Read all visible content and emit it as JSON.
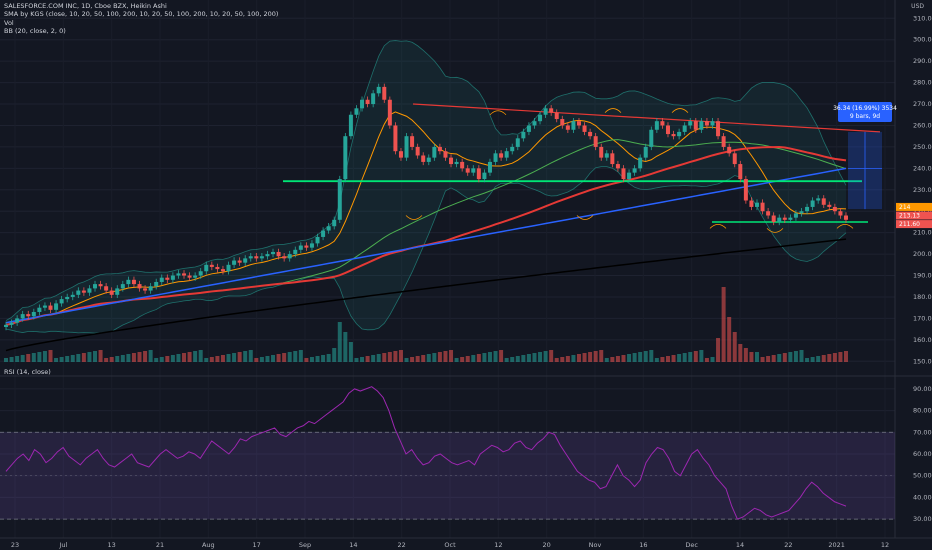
{
  "header": {
    "symbol_line": "SALESFORCE.COM INC, 1D, Cboe BZX, Heikin Ashi",
    "sma_line": "SMA by KGS (close, 10, 20, 50, 100, 200, 10, 20, 50, 100, 200, 10, 20, 50, 100, 200)",
    "vol_line": "Vol",
    "bb_line": "BB (20, close, 2, 0)",
    "rsi_line": "RSI (14, close)",
    "currency": "USD"
  },
  "measure_box": {
    "line1": "36.34 (16.99%) 3534",
    "line2": "9 bars, 9d"
  },
  "price_tags": [
    "214",
    "213.13",
    "211.60"
  ],
  "chart_data": [
    {
      "type": "candlestick",
      "title": "SALESFORCE.COM INC, 1D, Cboe BZX, Heikin Ashi",
      "y_ticks": [
        310,
        300,
        290,
        280,
        270,
        260,
        250,
        240,
        230,
        220,
        210,
        200,
        190,
        180,
        170,
        160,
        150
      ],
      "y_tick_labels": [
        "310.00",
        "300.00",
        "290.00",
        "280.00",
        "270.00",
        "260.00",
        "250.00",
        "240.00",
        "230.00",
        "220.00",
        "210.00",
        "200.00",
        "190.00",
        "180.00",
        "170.00",
        "160.00",
        "150.00"
      ],
      "ylim": [
        145,
        312
      ],
      "x_tick_labels": [
        "23",
        "Jul",
        "13",
        "21",
        "Aug",
        "17",
        "Sep",
        "14",
        "22",
        "Oct",
        "12",
        "20",
        "Nov",
        "16",
        "Dec",
        "14",
        "22",
        "2021",
        "12"
      ],
      "series_close": [
        167,
        168,
        170,
        172,
        171,
        173,
        175,
        176,
        174,
        177,
        179,
        180,
        181,
        183,
        182,
        184,
        186,
        185,
        183,
        181,
        184,
        186,
        188,
        186,
        184,
        183,
        185,
        187,
        189,
        188,
        190,
        191,
        190,
        189,
        190,
        192,
        195,
        194,
        193,
        192,
        195,
        197,
        196,
        198,
        199,
        198,
        199,
        200,
        201,
        199,
        198,
        200,
        202,
        204,
        203,
        205,
        208,
        211,
        213,
        216,
        235,
        255,
        265,
        268,
        272,
        270,
        275,
        278,
        272,
        260,
        248,
        245,
        255,
        250,
        246,
        243,
        245,
        250,
        248,
        245,
        242,
        243,
        240,
        238,
        240,
        235,
        238,
        243,
        247,
        245,
        248,
        250,
        254,
        257,
        260,
        262,
        265,
        268,
        266,
        263,
        260,
        258,
        262,
        260,
        257,
        255,
        250,
        245,
        247,
        242,
        240,
        235,
        238,
        240,
        245,
        250,
        258,
        262,
        260,
        256,
        255,
        257,
        260,
        262,
        258,
        262,
        260,
        262,
        255,
        250,
        247,
        242,
        235,
        225,
        222,
        224,
        220,
        218,
        215,
        217,
        216,
        217,
        219,
        220,
        222,
        225,
        226,
        223,
        222,
        220,
        218,
        216
      ],
      "rsi_values": [
        52,
        55,
        58,
        60,
        57,
        62,
        60,
        56,
        58,
        61,
        63,
        59,
        57,
        55,
        58,
        60,
        62,
        58,
        55,
        54,
        56,
        58,
        60,
        56,
        55,
        54,
        57,
        60,
        62,
        60,
        58,
        59,
        61,
        60,
        58,
        62,
        66,
        64,
        62,
        60,
        63,
        67,
        66,
        68,
        69,
        70,
        71,
        72,
        69,
        68,
        70,
        72,
        73,
        75,
        74,
        76,
        78,
        80,
        82,
        84,
        88,
        90,
        89,
        90,
        91,
        89,
        86,
        80,
        72,
        66,
        60,
        62,
        58,
        55,
        56,
        59,
        60,
        58,
        56,
        55,
        56,
        57,
        55,
        60,
        62,
        64,
        63,
        61,
        62,
        65,
        66,
        63,
        62,
        65,
        67,
        70,
        69,
        64,
        60,
        56,
        52,
        50,
        48,
        47,
        44,
        45,
        50,
        55,
        50,
        48,
        45,
        48,
        56,
        60,
        63,
        62,
        58,
        52,
        50,
        55,
        60,
        62,
        58,
        55,
        50,
        47,
        44,
        36,
        30,
        31,
        33,
        35,
        34,
        32,
        31,
        32,
        33,
        34,
        37,
        40,
        44,
        47,
        45,
        42,
        40,
        38,
        37,
        36
      ]
    },
    {
      "type": "line",
      "title": "RSI (14, close)",
      "y_ticks": [
        90,
        80,
        70,
        60,
        50,
        40,
        30
      ],
      "y_tick_labels": [
        "90.00",
        "80.00",
        "70.00",
        "60.00",
        "50.00",
        "40.00",
        "30.00"
      ],
      "ylim": [
        25,
        95
      ]
    }
  ],
  "colors": {
    "up": "#26a69a",
    "down": "#ef5350",
    "background": "#131722",
    "sma_fast": "#ff9800",
    "sma_50": "#4caf50",
    "sma_100": "#e53935",
    "sma_150": "#2962ff",
    "sma_200": "#000000",
    "rsi": "#9c27b0",
    "support": "#00e676",
    "resistance": "#e53935"
  }
}
